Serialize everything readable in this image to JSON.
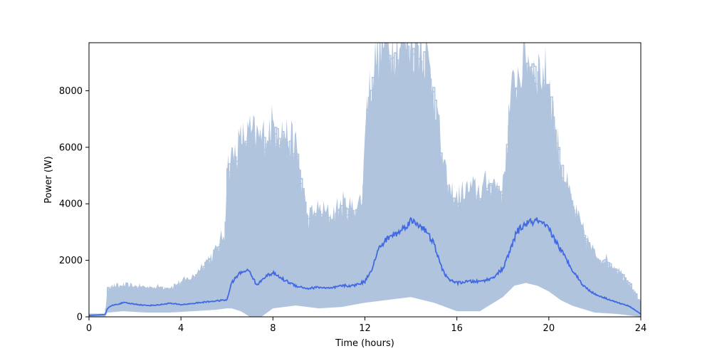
{
  "chart_data": {
    "type": "line",
    "title": "",
    "xlabel": "Time (hours)",
    "ylabel": "Power (W)",
    "xlim": [
      0,
      24
    ],
    "ylim": [
      0,
      9700
    ],
    "xticks": [
      0,
      4,
      8,
      12,
      16,
      20,
      24
    ],
    "yticks": [
      0,
      2000,
      4000,
      6000,
      8000
    ],
    "grid": false,
    "legend": "none",
    "colors": {
      "mean": "#4169e1",
      "samples": "#b0c4de"
    },
    "mean_profile": {
      "x": [
        0,
        0.7,
        0.8,
        1.0,
        1.5,
        2.0,
        2.5,
        3.0,
        3.5,
        4.0,
        4.5,
        5.0,
        5.5,
        6.0,
        6.2,
        6.5,
        6.8,
        7.0,
        7.3,
        7.6,
        8.0,
        8.5,
        9.0,
        9.5,
        10.0,
        10.5,
        11.0,
        11.5,
        12.0,
        12.3,
        12.6,
        13.0,
        13.5,
        14.0,
        14.5,
        15.0,
        15.3,
        15.6,
        16.0,
        16.5,
        17.0,
        17.5,
        18.0,
        18.3,
        18.6,
        19.0,
        19.5,
        20.0,
        20.5,
        21.0,
        21.5,
        22.0,
        22.5,
        23.0,
        23.5,
        24.0
      ],
      "y": [
        50,
        80,
        300,
        400,
        500,
        450,
        400,
        420,
        480,
        430,
        470,
        520,
        560,
        600,
        1200,
        1500,
        1650,
        1600,
        1100,
        1400,
        1550,
        1300,
        1100,
        1000,
        1050,
        1000,
        1100,
        1100,
        1250,
        1700,
        2400,
        2800,
        3000,
        3400,
        3200,
        2600,
        1800,
        1350,
        1200,
        1250,
        1250,
        1350,
        1700,
        2300,
        3000,
        3300,
        3400,
        3100,
        2400,
        1700,
        1100,
        800,
        650,
        500,
        380,
        100
      ]
    },
    "envelope_upper": {
      "x": [
        0,
        0.7,
        0.8,
        1.5,
        2.5,
        3.5,
        4.5,
        5.0,
        5.5,
        5.9,
        6.0,
        6.2,
        6.6,
        7.0,
        7.5,
        8.0,
        8.5,
        9.0,
        9.5,
        10.0,
        10.5,
        11.0,
        11.5,
        11.9,
        12.0,
        12.3,
        12.6,
        13.0,
        13.5,
        14.0,
        14.5,
        15.0,
        15.3,
        15.6,
        16.0,
        16.5,
        17.0,
        17.5,
        18.0,
        18.3,
        18.6,
        19.0,
        19.5,
        20.0,
        20.3,
        20.6,
        21.0,
        21.5,
        22.0,
        22.5,
        23.0,
        23.5,
        24.0
      ],
      "y": [
        100,
        100,
        1050,
        1100,
        1050,
        1050,
        1400,
        1900,
        2300,
        3000,
        5300,
        5600,
        6200,
        6500,
        6300,
        6800,
        6500,
        6000,
        3500,
        3800,
        3600,
        4000,
        3800,
        4200,
        7000,
        8500,
        9500,
        9700,
        9700,
        9700,
        9700,
        8200,
        6000,
        4500,
        4200,
        4500,
        4500,
        4800,
        4500,
        7500,
        8500,
        9200,
        8800,
        8500,
        6500,
        5200,
        4000,
        3000,
        2200,
        2000,
        1700,
        1200,
        500
      ]
    },
    "envelope_lower": {
      "x": [
        0,
        0.7,
        0.8,
        1.5,
        2.5,
        3.5,
        4.5,
        5.5,
        6.0,
        6.2,
        6.6,
        7.0,
        7.5,
        8.0,
        9.0,
        10.0,
        11.0,
        12.0,
        13.0,
        14.0,
        15.0,
        16.0,
        17.0,
        18.0,
        18.5,
        19.0,
        19.5,
        20.0,
        20.5,
        21.0,
        22.0,
        23.0,
        24.0
      ],
      "y": [
        0,
        0,
        150,
        200,
        150,
        150,
        200,
        250,
        300,
        300,
        200,
        0,
        0,
        300,
        400,
        300,
        350,
        500,
        600,
        700,
        500,
        200,
        200,
        700,
        1100,
        1200,
        1100,
        900,
        600,
        400,
        150,
        100,
        0
      ]
    }
  }
}
